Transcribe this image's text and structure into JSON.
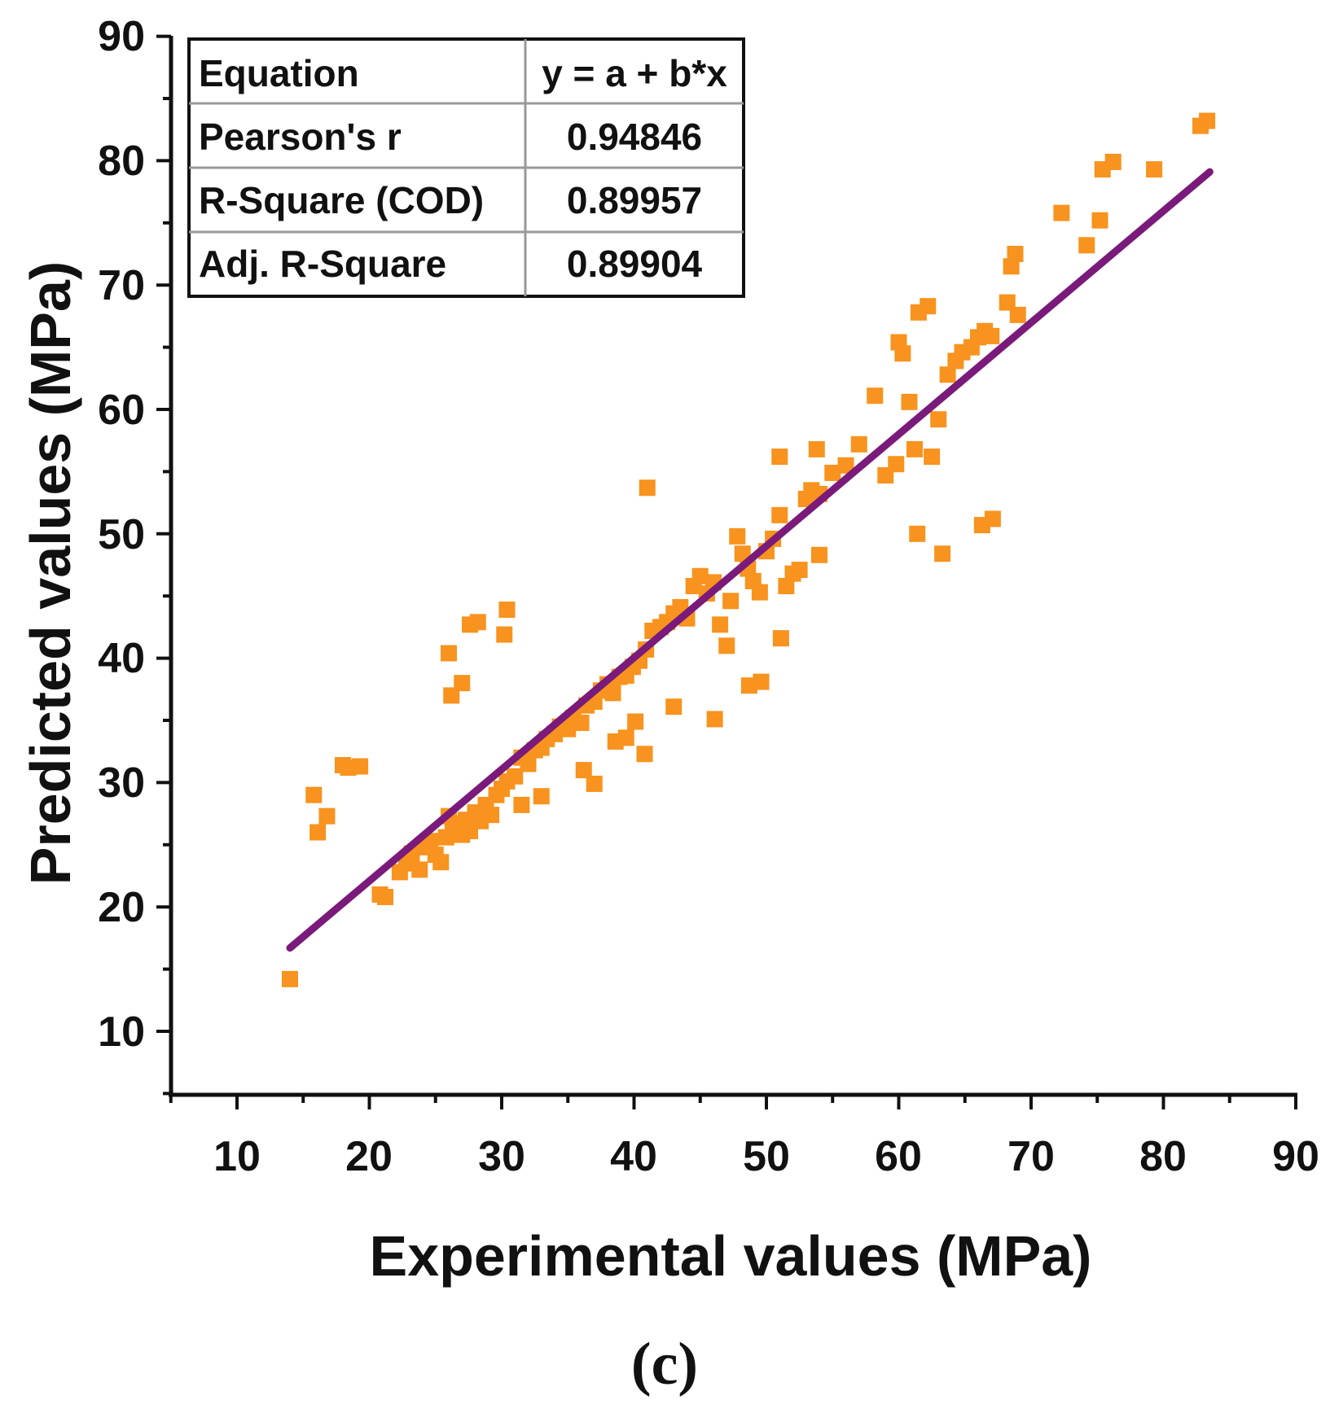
{
  "chart_data": {
    "type": "scatter",
    "title": "",
    "xlabel": "Experimental values (MPa)",
    "ylabel": "Predicted values (MPa)",
    "xlim": [
      5,
      90
    ],
    "ylim": [
      5,
      90
    ],
    "xticks": [
      10,
      20,
      30,
      40,
      50,
      60,
      70,
      80,
      90
    ],
    "yticks": [
      10,
      20,
      30,
      40,
      50,
      60,
      70,
      80,
      90
    ],
    "caption": "(c)",
    "marker_color": "#F7931E",
    "line_color": "#7A1A7A",
    "fit_line": {
      "x": [
        14,
        83.5
      ],
      "y": [
        16.7,
        79.1
      ]
    },
    "stats_table": [
      [
        "Equation",
        "y = a + b*x"
      ],
      [
        "Pearson's r",
        "0.94846"
      ],
      [
        "R-Square (COD)",
        "0.89957"
      ],
      [
        "Adj. R-Square",
        "0.89904"
      ]
    ],
    "series": [
      {
        "name": "data",
        "points": [
          [
            14.0,
            14.2
          ],
          [
            15.8,
            29.0
          ],
          [
            16.1,
            26.0
          ],
          [
            16.8,
            27.3
          ],
          [
            18.0,
            31.4
          ],
          [
            18.4,
            31.2
          ],
          [
            19.3,
            31.3
          ],
          [
            20.8,
            21.0
          ],
          [
            21.2,
            20.8
          ],
          [
            22.3,
            22.8
          ],
          [
            22.8,
            23.5
          ],
          [
            23.2,
            24.3
          ],
          [
            23.8,
            23.0
          ],
          [
            24.0,
            24.8
          ],
          [
            24.6,
            25.3
          ],
          [
            25.0,
            24.2
          ],
          [
            25.4,
            23.6
          ],
          [
            25.8,
            25.6
          ],
          [
            26.0,
            27.3
          ],
          [
            26.3,
            26.2
          ],
          [
            26.6,
            26.7
          ],
          [
            27.0,
            25.8
          ],
          [
            27.3,
            27.0
          ],
          [
            27.6,
            26.1
          ],
          [
            28.0,
            27.6
          ],
          [
            28.4,
            26.9
          ],
          [
            28.8,
            28.2
          ],
          [
            29.2,
            27.4
          ],
          [
            29.6,
            29.0
          ],
          [
            30.0,
            29.5
          ],
          [
            30.4,
            30.1
          ],
          [
            31.0,
            30.5
          ],
          [
            31.5,
            32.0
          ],
          [
            32.0,
            31.5
          ],
          [
            32.5,
            32.6
          ],
          [
            33.0,
            32.8
          ],
          [
            33.4,
            33.5
          ],
          [
            34.0,
            33.9
          ],
          [
            34.4,
            34.5
          ],
          [
            35.0,
            34.3
          ],
          [
            35.4,
            35.2
          ],
          [
            36.0,
            34.8
          ],
          [
            36.4,
            36.2
          ],
          [
            37.0,
            36.5
          ],
          [
            37.5,
            37.4
          ],
          [
            38.0,
            37.9
          ],
          [
            38.4,
            37.2
          ],
          [
            38.9,
            38.5
          ],
          [
            39.4,
            38.6
          ],
          [
            39.9,
            39.3
          ],
          [
            40.4,
            39.8
          ],
          [
            40.9,
            40.7
          ],
          [
            41.4,
            42.2
          ],
          [
            42.0,
            42.5
          ],
          [
            42.5,
            42.9
          ],
          [
            43.0,
            43.6
          ],
          [
            43.5,
            44.1
          ],
          [
            44.0,
            43.2
          ],
          [
            44.5,
            45.8
          ],
          [
            45.0,
            46.6
          ],
          [
            45.5,
            45.2
          ],
          [
            46.0,
            46.1
          ],
          [
            46.5,
            42.7
          ],
          [
            47.0,
            41.0
          ],
          [
            47.3,
            44.6
          ],
          [
            47.8,
            49.8
          ],
          [
            48.2,
            48.4
          ],
          [
            48.6,
            47.2
          ],
          [
            49.0,
            46.2
          ],
          [
            49.5,
            45.3
          ],
          [
            50.0,
            48.6
          ],
          [
            50.5,
            49.6
          ],
          [
            51.0,
            51.5
          ],
          [
            51.5,
            45.8
          ],
          [
            52.0,
            46.8
          ],
          [
            52.5,
            47.1
          ],
          [
            53.0,
            52.8
          ],
          [
            53.4,
            53.5
          ],
          [
            54.0,
            53.2
          ],
          [
            55.0,
            54.9
          ],
          [
            56.0,
            55.5
          ],
          [
            57.0,
            57.2
          ],
          [
            58.2,
            61.1
          ],
          [
            59.0,
            54.7
          ],
          [
            59.8,
            55.6
          ],
          [
            60.0,
            65.4
          ],
          [
            60.3,
            64.5
          ],
          [
            60.8,
            60.6
          ],
          [
            61.2,
            56.8
          ],
          [
            61.5,
            67.8
          ],
          [
            62.2,
            68.3
          ],
          [
            62.5,
            56.2
          ],
          [
            63.0,
            59.2
          ],
          [
            63.7,
            62.8
          ],
          [
            64.3,
            63.9
          ],
          [
            64.8,
            64.6
          ],
          [
            65.5,
            65.0
          ],
          [
            66.0,
            65.8
          ],
          [
            66.5,
            66.3
          ],
          [
            67.0,
            65.9
          ],
          [
            68.2,
            68.6
          ],
          [
            68.5,
            71.5
          ],
          [
            68.8,
            72.5
          ],
          [
            69.0,
            67.6
          ],
          [
            72.3,
            75.8
          ],
          [
            74.2,
            73.2
          ],
          [
            75.2,
            75.2
          ],
          [
            75.4,
            79.3
          ],
          [
            76.2,
            79.9
          ],
          [
            79.3,
            79.3
          ],
          [
            82.8,
            82.8
          ],
          [
            83.3,
            83.2
          ],
          [
            26.0,
            40.4
          ],
          [
            26.2,
            37.0
          ],
          [
            27.0,
            38.0
          ],
          [
            27.6,
            42.7
          ],
          [
            28.2,
            42.9
          ],
          [
            30.2,
            41.9
          ],
          [
            30.4,
            43.9
          ],
          [
            31.5,
            28.2
          ],
          [
            33.0,
            28.9
          ],
          [
            36.2,
            31.0
          ],
          [
            37.0,
            29.9
          ],
          [
            38.6,
            33.3
          ],
          [
            39.4,
            33.6
          ],
          [
            40.1,
            34.9
          ],
          [
            40.8,
            32.3
          ],
          [
            41.0,
            53.7
          ],
          [
            43.0,
            36.1
          ],
          [
            46.1,
            35.1
          ],
          [
            48.7,
            37.8
          ],
          [
            49.6,
            38.1
          ],
          [
            51.1,
            41.6
          ],
          [
            51.0,
            56.2
          ],
          [
            53.8,
            56.8
          ],
          [
            54.0,
            48.3
          ],
          [
            61.4,
            50.0
          ],
          [
            63.3,
            48.4
          ],
          [
            66.3,
            50.7
          ],
          [
            67.1,
            51.2
          ]
        ]
      }
    ]
  }
}
